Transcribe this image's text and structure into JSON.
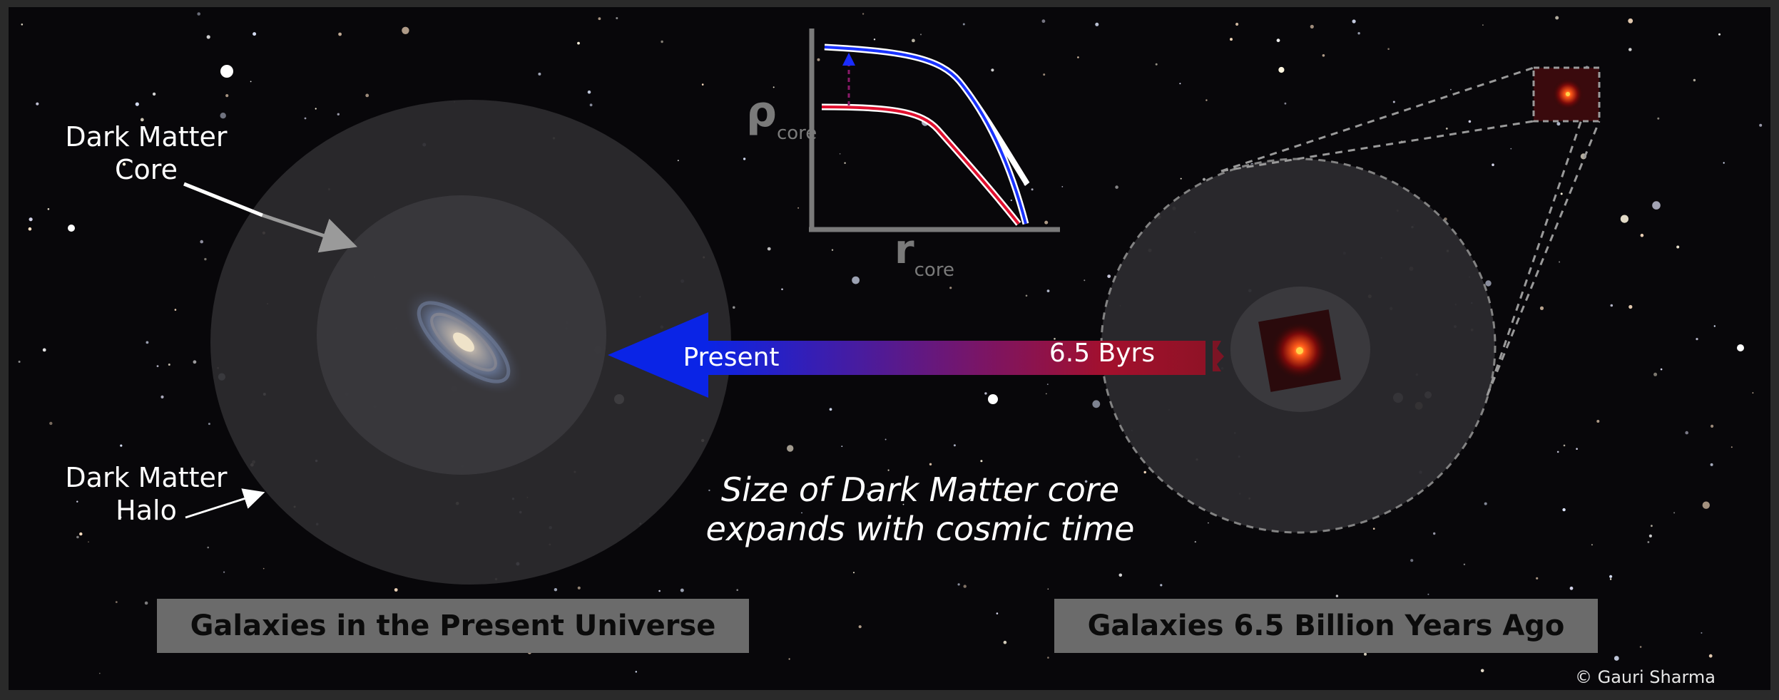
{
  "labels": {
    "core_line1": "Dark Matter",
    "core_line2": "Core",
    "halo_line1": "Dark Matter",
    "halo_line2": "Halo",
    "present": "Present",
    "lookback": "6.5 Byrs",
    "statement_line1": "Size of  Dark Matter core",
    "statement_line2": "expands with cosmic time",
    "caption_left": "Galaxies in the Present Universe",
    "caption_right": "Galaxies 6.5 Billion Years Ago",
    "credit": "© Gauri Sharma"
  },
  "inset_plot": {
    "y_symbol": "ρ",
    "y_sub": "core",
    "x_symbol": "r",
    "x_sub": "core",
    "curves": [
      {
        "color": "#1a33ff",
        "meaning": "present-day profile (larger core)"
      },
      {
        "color": "#e0102f",
        "meaning": "profile 6.5 Gyr ago (smaller core)"
      }
    ],
    "arrow_color": "#1a2cff"
  },
  "colors": {
    "background": "#08070a",
    "arrow_present": "#0a24e6",
    "arrow_past": "#8f1226",
    "halo": "#2c2b2f",
    "core": "#38373b",
    "caption_bg": "#6b6b6b"
  }
}
